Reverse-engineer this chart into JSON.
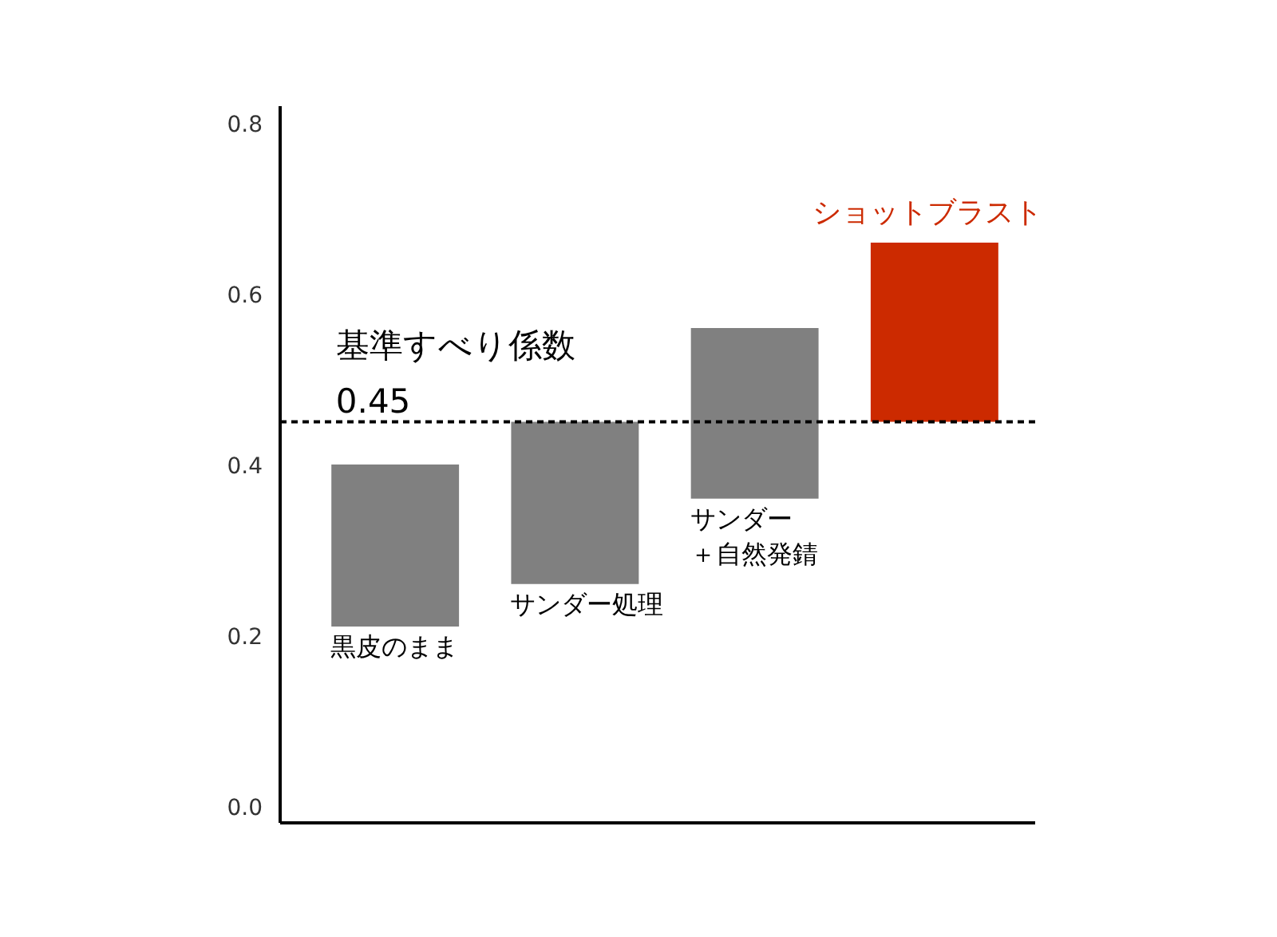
{
  "chart_data": {
    "type": "bar",
    "categories": [
      "黒皮のまま",
      "サンダー処理",
      "サンダー＋自然発錆",
      "ショットブラスト"
    ],
    "values": [
      0.19,
      0.19,
      0.2,
      0.21
    ],
    "base": [
      0.21,
      0.26,
      0.36,
      0.45
    ],
    "colors": [
      "#808080",
      "#808080",
      "#808080",
      "#cc2a00"
    ],
    "ylim": [
      -0.02,
      0.82
    ],
    "yticks": [
      {
        "value": 0,
        "label": "0.0"
      },
      0.2,
      0.4,
      0.6,
      0.8
    ],
    "tick_labels": "y",
    "grid": false,
    "ref_lines": [
      {
        "axis": "y",
        "value": 0.45,
        "label": "基準すべり係数\n0.45",
        "color": "#000000",
        "line_style": "dashed"
      }
    ]
  }
}
